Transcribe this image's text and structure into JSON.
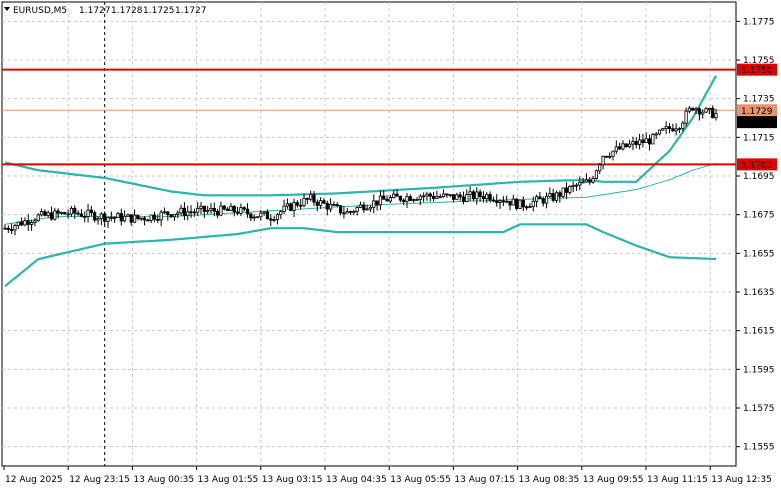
{
  "chart_data": {
    "type": "candlestick",
    "symbol_header": {
      "symbol": "EURUSD,M5",
      "open": "1.1727",
      "high": "1.1728",
      "low": "1.1725",
      "close": "1.1727"
    },
    "price_axis": {
      "ylim": [
        1.1545,
        1.1785
      ],
      "ticks": [
        "1.1775",
        "1.1755",
        "1.1735",
        "1.1715",
        "1.1695",
        "1.1675",
        "1.1655",
        "1.1635",
        "1.1615",
        "1.1595",
        "1.1575",
        "1.1555"
      ]
    },
    "time_axis": {
      "labels": [
        "12 Aug 2025",
        "12 Aug 23:15",
        "13 Aug 00:35",
        "13 Aug 01:55",
        "13 Aug 03:15",
        "13 Aug 04:35",
        "13 Aug 05:55",
        "13 Aug 07:15",
        "13 Aug 08:35",
        "13 Aug 09:55",
        "13 Aug 11:15",
        "13 Aug 12:35"
      ]
    },
    "horizontal_levels": [
      {
        "price": 1.175,
        "label": "1.1750",
        "color": "#e00000"
      },
      {
        "price": 1.1701,
        "label": "1.1701",
        "color": "#e00000"
      }
    ],
    "reference_line": {
      "price": 1.1729,
      "label": "1.1729",
      "color": "#e8946b"
    },
    "current_price": {
      "price": 1.1727,
      "label": "1.1727"
    },
    "vertical_marker_bar": 30,
    "bar_count": 215,
    "bollinger": {
      "color": "#2ab5ad",
      "upper": [
        [
          0,
          1.1702
        ],
        [
          10,
          1.1698
        ],
        [
          30,
          1.1694
        ],
        [
          50,
          1.1687
        ],
        [
          60,
          1.1685
        ],
        [
          80,
          1.1685
        ],
        [
          100,
          1.1686
        ],
        [
          130,
          1.1689
        ],
        [
          155,
          1.1692
        ],
        [
          175,
          1.1693
        ],
        [
          180,
          1.1692
        ],
        [
          190,
          1.1692
        ],
        [
          200,
          1.1708
        ],
        [
          207,
          1.1725
        ],
        [
          215,
          1.175
        ]
      ],
      "middle": [
        [
          0,
          1.167
        ],
        [
          15,
          1.1674
        ],
        [
          30,
          1.1674
        ],
        [
          50,
          1.1674
        ],
        [
          80,
          1.1677
        ],
        [
          110,
          1.168
        ],
        [
          140,
          1.1682
        ],
        [
          175,
          1.1684
        ],
        [
          190,
          1.1688
        ],
        [
          200,
          1.1693
        ],
        [
          207,
          1.1698
        ],
        [
          215,
          1.1702
        ]
      ],
      "lower": [
        [
          0,
          1.1638
        ],
        [
          10,
          1.1652
        ],
        [
          30,
          1.166
        ],
        [
          50,
          1.1662
        ],
        [
          70,
          1.1665
        ],
        [
          80,
          1.1668
        ],
        [
          90,
          1.1668
        ],
        [
          100,
          1.1666
        ],
        [
          130,
          1.1666
        ],
        [
          150,
          1.1666
        ],
        [
          155,
          1.167
        ],
        [
          175,
          1.167
        ],
        [
          180,
          1.1666
        ],
        [
          190,
          1.1659
        ],
        [
          200,
          1.1653
        ],
        [
          215,
          1.1652
        ]
      ]
    },
    "price_path": [
      [
        0,
        1.1668
      ],
      [
        10,
        1.1674
      ],
      [
        20,
        1.1676
      ],
      [
        30,
        1.1674
      ],
      [
        40,
        1.1673
      ],
      [
        50,
        1.1676
      ],
      [
        60,
        1.1677
      ],
      [
        70,
        1.1677
      ],
      [
        75,
        1.1675
      ],
      [
        80,
        1.1674
      ],
      [
        88,
        1.1681
      ],
      [
        92,
        1.1683
      ],
      [
        98,
        1.1679
      ],
      [
        103,
        1.1676
      ],
      [
        108,
        1.168
      ],
      [
        115,
        1.1683
      ],
      [
        125,
        1.1685
      ],
      [
        135,
        1.1684
      ],
      [
        145,
        1.1685
      ],
      [
        150,
        1.1683
      ],
      [
        155,
        1.168
      ],
      [
        165,
        1.1684
      ],
      [
        172,
        1.169
      ],
      [
        176,
        1.1692
      ],
      [
        180,
        1.1706
      ],
      [
        185,
        1.1709
      ],
      [
        190,
        1.1712
      ],
      [
        195,
        1.1714
      ],
      [
        198,
        1.1718
      ],
      [
        203,
        1.1722
      ],
      [
        207,
        1.1731
      ],
      [
        211,
        1.1728
      ],
      [
        214,
        1.1727
      ]
    ]
  }
}
